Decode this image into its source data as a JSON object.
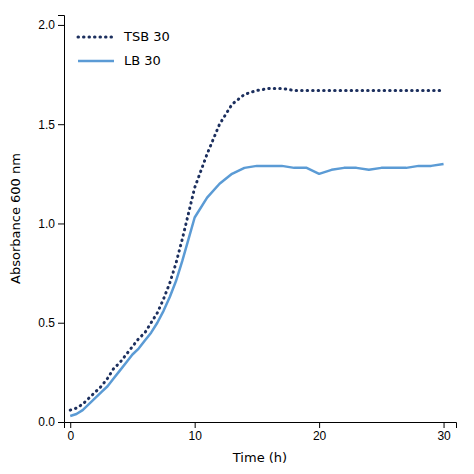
{
  "chart_data": {
    "type": "line",
    "xlabel": "Time (h)",
    "ylabel": "Absorbance 600 nm",
    "x": [
      0,
      0.5,
      1,
      1.5,
      2,
      2.5,
      3,
      3.5,
      4,
      4.5,
      5,
      5.5,
      6,
      6.5,
      7,
      7.5,
      8,
      8.5,
      9,
      9.5,
      10,
      11,
      12,
      13,
      14,
      15,
      16,
      17,
      18,
      19,
      20,
      21,
      22,
      23,
      24,
      25,
      26,
      27,
      28,
      29,
      30
    ],
    "series": [
      {
        "name": "TSB 30",
        "color": "#1c2f5e",
        "line_style": "dotted",
        "values": [
          0.06,
          0.07,
          0.09,
          0.12,
          0.15,
          0.18,
          0.22,
          0.27,
          0.3,
          0.34,
          0.38,
          0.42,
          0.45,
          0.5,
          0.55,
          0.62,
          0.7,
          0.8,
          0.92,
          1.05,
          1.18,
          1.35,
          1.5,
          1.6,
          1.65,
          1.67,
          1.68,
          1.68,
          1.67,
          1.67,
          1.67,
          1.67,
          1.67,
          1.67,
          1.67,
          1.67,
          1.67,
          1.67,
          1.67,
          1.67,
          1.67
        ]
      },
      {
        "name": "LB 30",
        "color": "#5b9bd5",
        "line_style": "solid",
        "values": [
          0.03,
          0.04,
          0.06,
          0.09,
          0.12,
          0.15,
          0.18,
          0.22,
          0.26,
          0.3,
          0.34,
          0.37,
          0.41,
          0.45,
          0.5,
          0.56,
          0.63,
          0.71,
          0.81,
          0.92,
          1.03,
          1.13,
          1.2,
          1.25,
          1.28,
          1.29,
          1.29,
          1.29,
          1.28,
          1.28,
          1.25,
          1.27,
          1.28,
          1.28,
          1.27,
          1.28,
          1.28,
          1.28,
          1.29,
          1.29,
          1.3
        ]
      }
    ],
    "xlim": [
      -0.5,
      31
    ],
    "ylim": [
      0,
      2.05
    ],
    "xticks": [
      0,
      10,
      20,
      30
    ],
    "yticks": [
      {
        "value": 0,
        "label": "0.0"
      },
      {
        "value": 0.5,
        "label": "0.5"
      },
      {
        "value": 1,
        "label": "1.0"
      },
      {
        "value": 1.5,
        "label": "1.5"
      },
      {
        "value": 2,
        "label": "2.0"
      }
    ],
    "legend": "upper left"
  }
}
